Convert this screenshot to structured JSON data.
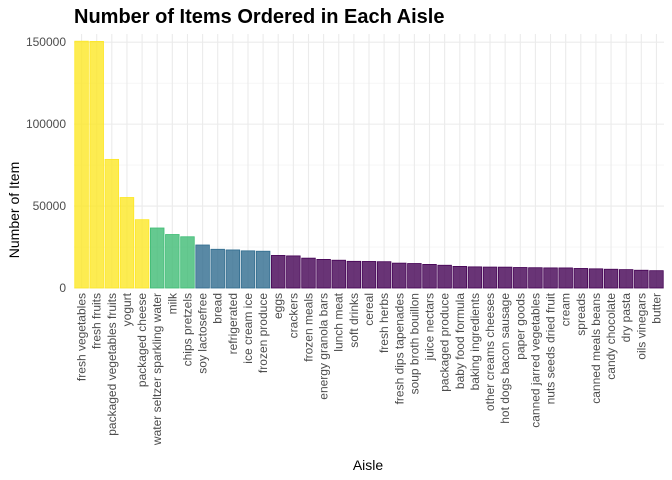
{
  "chart_data": {
    "type": "bar",
    "title": "Number of Items Ordered in Each Aisle",
    "xlabel": "Aisle",
    "ylabel": "Number of Item",
    "ylim": [
      0,
      155000
    ],
    "yticks": [
      0,
      50000,
      100000,
      150000
    ],
    "ytick_labels": [
      "0",
      "50000",
      "100000",
      "150000"
    ],
    "grid": true,
    "legend": "none",
    "categories": [
      "fresh vegetables",
      "fresh fruits",
      "packaged vegetables fruits",
      "yogurt",
      "packaged cheese",
      "water seltzer sparkling water",
      "milk",
      "chips pretzels",
      "soy lactosefree",
      "bread",
      "refrigerated",
      "ice cream ice",
      "frozen produce",
      "eggs",
      "crackers",
      "frozen meals",
      "energy granola bars",
      "lunch meat",
      "soft drinks",
      "cereal",
      "fresh herbs",
      "fresh dips tapenades",
      "soup broth bouillon",
      "juice nectars",
      "packaged produce",
      "baby food formula",
      "baking ingredients",
      "other creams cheeses",
      "hot dogs bacon sausage",
      "paper goods",
      "canned jarred vegetables",
      "nuts seeds dried fruit",
      "cream",
      "spreads",
      "canned meals beans",
      "candy chocolate",
      "dry pasta",
      "oils vinegars",
      "butter"
    ],
    "values": [
      150609,
      150473,
      78493,
      55240,
      41699,
      36617,
      32644,
      31269,
      26240,
      23635,
      23228,
      22676,
      22453,
      19875,
      19592,
      18221,
      17449,
      16957,
      16279,
      16201,
      16052,
      15177,
      14940,
      14399,
      13885,
      13181,
      12900,
      12774,
      12736,
      12517,
      12379,
      12267,
      12247,
      11929,
      11700,
      11452,
      11220,
      10843,
      10575
    ],
    "colors": [
      "#FDE725",
      "#FDE725",
      "#FDE725",
      "#FDE725",
      "#FDE725",
      "#3EBC74",
      "#3EBC74",
      "#3EBC74",
      "#2F6C8E",
      "#2F6C8E",
      "#2F6C8E",
      "#2F6C8E",
      "#2F6C8E",
      "#440154",
      "#440154",
      "#440154",
      "#440154",
      "#440154",
      "#440154",
      "#440154",
      "#440154",
      "#440154",
      "#440154",
      "#440154",
      "#440154",
      "#440154",
      "#440154",
      "#440154",
      "#440154",
      "#440154",
      "#440154",
      "#440154",
      "#440154",
      "#440154",
      "#440154",
      "#440154",
      "#440154",
      "#440154",
      "#440154"
    ],
    "bar_opacity": 0.8
  }
}
